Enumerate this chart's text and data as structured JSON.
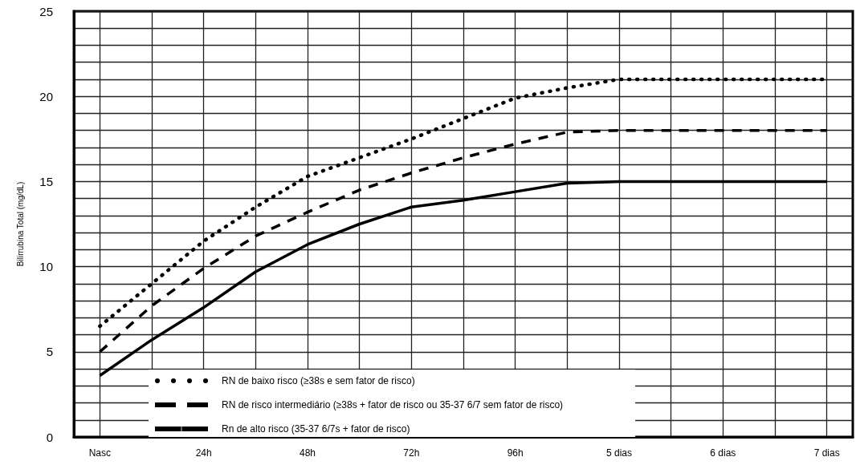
{
  "chart_data": {
    "type": "line",
    "ylabel": "Bilirrubina Total (mg/dL)",
    "categories": [
      "Nasc",
      null,
      "24h",
      null,
      "48h",
      null,
      "72h",
      null,
      "96h",
      null,
      "5 dias",
      null,
      "6 dias",
      null,
      "7 dias"
    ],
    "ylim": [
      0,
      25
    ],
    "yticks": [
      0,
      {
        "value": 1,
        "label": null
      },
      {
        "value": 2,
        "label": null
      },
      {
        "value": 3,
        "label": null
      },
      {
        "value": 4,
        "label": null
      },
      5,
      {
        "value": 6,
        "label": null
      },
      {
        "value": 7,
        "label": null
      },
      {
        "value": 8,
        "label": null
      },
      {
        "value": 9,
        "label": null
      },
      10,
      {
        "value": 11,
        "label": null
      },
      {
        "value": 12,
        "label": null
      },
      {
        "value": 13,
        "label": null
      },
      {
        "value": 14,
        "label": null
      },
      15,
      {
        "value": 16,
        "label": null
      },
      {
        "value": 17,
        "label": null
      },
      {
        "value": 18,
        "label": null
      },
      {
        "value": 19,
        "label": null
      },
      20,
      {
        "value": 21,
        "label": null
      },
      {
        "value": 22,
        "label": null
      },
      {
        "value": 23,
        "label": null
      },
      {
        "value": 24,
        "label": null
      },
      25
    ],
    "series": [
      {
        "name": "RN de baixo risco (≥38s e sem fator de risco)",
        "color": "#000000",
        "line_style": "dotted",
        "values": [
          6.5,
          9.0,
          11.5,
          13.5,
          15.3,
          16.4,
          17.5,
          18.7,
          19.9,
          20.5,
          21.0,
          21.0,
          21.0,
          21.0,
          21.0
        ]
      },
      {
        "name": "RN de risco intermediário (≥38s + fator de risco ou 35-37 6/7 sem fator de risco)",
        "color": "#000000",
        "line_style": "dashed",
        "values": [
          5.0,
          7.7,
          9.9,
          11.8,
          13.2,
          14.5,
          15.5,
          16.4,
          17.2,
          17.9,
          18.0,
          18.0,
          18.0,
          18.0,
          18.0
        ]
      },
      {
        "name": "Rn de alto risco (35-37 6/7s + fator de risco)",
        "color": "#000000",
        "line_style": "solid",
        "values": [
          3.6,
          5.7,
          7.6,
          9.7,
          11.3,
          12.5,
          13.5,
          13.9,
          14.4,
          14.9,
          15.0,
          15.0,
          15.0,
          15.0,
          15.0
        ]
      }
    ],
    "marker": "none",
    "grid": true,
    "legend": "bottom"
  }
}
